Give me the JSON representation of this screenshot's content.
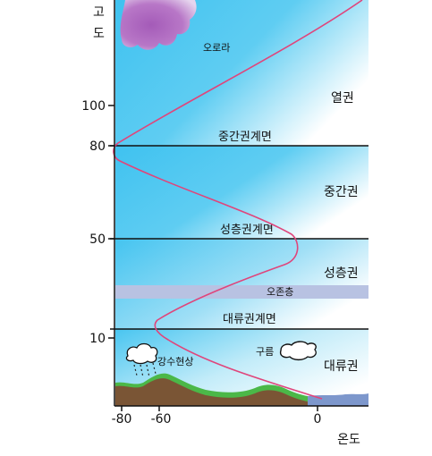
{
  "axes": {
    "y_title": "고\n도",
    "x_title": "온도",
    "y_ticks": [
      "100",
      "80",
      "50",
      "10"
    ],
    "x_ticks": [
      "-80",
      "-60",
      "0"
    ]
  },
  "boundaries": {
    "mesopause": "중간권계면",
    "stratopause": "성층권계면",
    "tropopause": "대류권계면"
  },
  "layers": {
    "thermosphere": "열권",
    "mesosphere": "중간권",
    "stratosphere": "성층권",
    "troposphere": "대류권"
  },
  "labels": {
    "aurora": "오로라",
    "ozone": "오존층",
    "cloud": "구름",
    "precipitation": "강수현상"
  },
  "colors": {
    "sky_top": "#41c3f0",
    "temperature_curve": "#e0457b",
    "ozone_band": "#b8c2e2",
    "ground": "#7a5535",
    "grass": "#4bb848",
    "sea": "#7d97cc"
  }
}
